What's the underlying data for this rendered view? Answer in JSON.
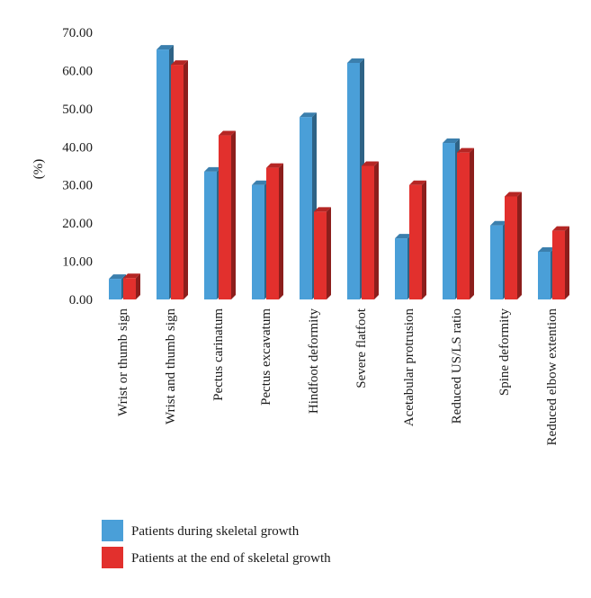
{
  "chart_data": {
    "type": "bar",
    "ylabel": "(%)",
    "ylim": [
      0,
      70
    ],
    "yticks": [
      "0.00",
      "10.00",
      "20.00",
      "30.00",
      "40.00",
      "50.00",
      "60.00",
      "70.00"
    ],
    "grid": false,
    "legend_position": "bottom",
    "categories": [
      "Wrist or thumb sign",
      "Wrist and thumb sign",
      "Pectus carinatum",
      "Pectus excavatum",
      "Hindfoot deformity",
      "Severe flatfoot",
      "Acetabular protrusion",
      "Reduced US/LS ratio",
      "Spine deformity",
      "Reduced elbow extention"
    ],
    "series": [
      {
        "name": "Patients during skeletal growth",
        "color": "#4a9fd8",
        "values": [
          5.4,
          65.5,
          33.5,
          30.0,
          47.8,
          62.0,
          16.0,
          41.0,
          19.4,
          12.5
        ]
      },
      {
        "name": "Patients at the end of skeletal growth",
        "color": "#e2302d",
        "values": [
          5.6,
          61.5,
          43.0,
          34.5,
          23.0,
          35.0,
          30.0,
          38.5,
          27.0,
          18.0
        ]
      }
    ]
  }
}
